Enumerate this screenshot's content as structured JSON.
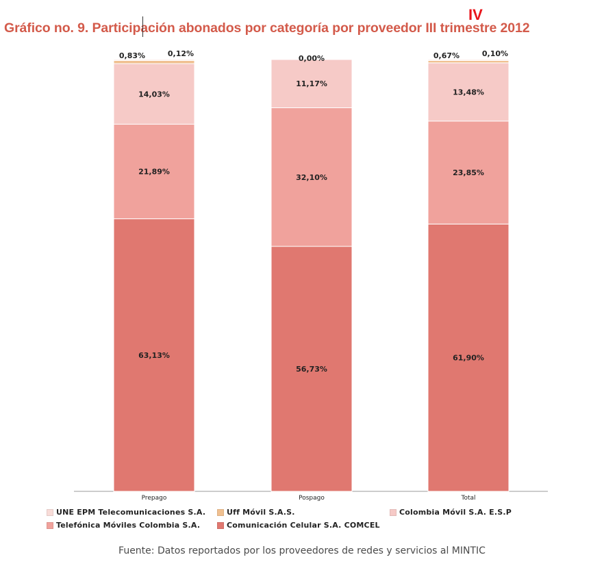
{
  "title": "Gráfico no. 9. Participación abonados por categoría por proveedor III trimestre 2012",
  "title_overlay": "IV",
  "source": "Fuente: Datos reportados por los proveedores de redes y servicios al MINTIC",
  "colors": {
    "title": "#d35a4a",
    "overlay": "#e8141a"
  },
  "chart_data": {
    "type": "bar",
    "stacked": true,
    "normalized_to": 100,
    "categories": [
      "Prepago",
      "Pospago",
      "Total"
    ],
    "ylim": [
      0,
      100
    ],
    "grid": false,
    "legend_position": "bottom",
    "series": [
      {
        "name": "Comunicación Celular S.A. COMCEL",
        "color": "#e07870",
        "values": [
          63.13,
          56.73,
          61.9
        ],
        "labels": [
          "63,13%",
          "56,73%",
          "61,90%"
        ]
      },
      {
        "name": "Telefónica Móviles Colombia S.A.",
        "color": "#f0a29c",
        "values": [
          21.89,
          32.1,
          23.85
        ],
        "labels": [
          "21,89%",
          "32,10%",
          "23,85%"
        ]
      },
      {
        "name": "Colombia Móvil S.A. E.S.P",
        "color": "#f6cac7",
        "values": [
          14.03,
          11.17,
          13.48
        ],
        "labels": [
          "14,03%",
          "11,17%",
          "13,48%"
        ]
      },
      {
        "name": "Uff Móvil S.A.S.",
        "color": "#f0c090",
        "values": [
          0.83,
          0.0,
          0.67
        ],
        "labels": [
          "0,83%",
          "",
          "0,67%"
        ]
      },
      {
        "name": "UNE EPM Telecomunicaciones S.A.",
        "color": "#f8dcd8",
        "values": [
          0.12,
          0.0,
          0.1
        ],
        "labels": [
          "0,12%",
          "0,00%",
          "0,10%"
        ]
      }
    ]
  },
  "legend": {
    "rows": [
      [
        {
          "series": 4,
          "label": "UNE EPM Telecomunicaciones S.A."
        },
        {
          "series": 3,
          "label": "Uff Móvil S.A.S."
        },
        {
          "series": 2,
          "label": "Colombia Móvil S.A. E.S.P"
        }
      ],
      [
        {
          "series": 1,
          "label": "Telefónica Móviles Colombia S.A."
        },
        {
          "series": 0,
          "label": "Comunicación Celular S.A. COMCEL"
        }
      ]
    ]
  }
}
